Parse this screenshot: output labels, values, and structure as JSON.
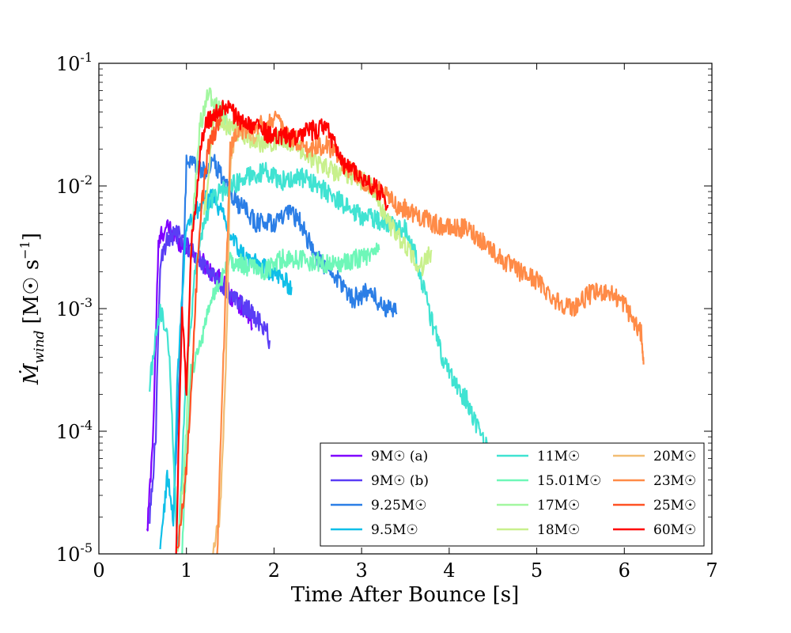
{
  "chart_data": {
    "type": "line",
    "title": "",
    "xlabel": "Time After Bounce [s]",
    "ylabel": "Ṁ_wind [M☉ s⁻¹]",
    "ylabel_parts": {
      "main": "Ṁ",
      "sub": "wind",
      "unit": "[M☉ s",
      "exp": "−1",
      "close": "]"
    },
    "xlim": [
      0,
      7
    ],
    "ylim": [
      1e-05,
      0.1
    ],
    "yscale": "log",
    "x_ticks": [
      "0",
      "1",
      "2",
      "3",
      "4",
      "5",
      "6",
      "7"
    ],
    "y_ticks": [
      {
        "base": "10",
        "exp": "-5"
      },
      {
        "base": "10",
        "exp": "-4"
      },
      {
        "base": "10",
        "exp": "-3"
      },
      {
        "base": "10",
        "exp": "-2"
      },
      {
        "base": "10",
        "exp": "-1"
      }
    ],
    "legend_placement": "lower-right",
    "series": [
      {
        "name": "9M☉ (a)",
        "color": "#8000ff",
        "x": [
          0.55,
          0.62,
          0.68,
          0.72,
          0.8,
          0.9,
          1.0,
          1.1,
          1.2,
          1.3,
          1.4,
          1.5,
          1.6,
          1.7,
          1.75
        ],
        "y": [
          1.4e-05,
          0.0001,
          0.0032,
          0.0042,
          0.0045,
          0.0036,
          0.0032,
          0.0027,
          0.0023,
          0.002,
          0.0017,
          0.0013,
          0.0011,
          0.0009,
          0.0007
        ]
      },
      {
        "name": "9M☉ (b)",
        "color": "#5a3df5",
        "x": [
          0.58,
          0.65,
          0.7,
          0.8,
          0.9,
          1.0,
          1.1,
          1.2,
          1.3,
          1.4,
          1.5,
          1.6,
          1.7,
          1.8,
          1.9,
          1.95
        ],
        "y": [
          2e-05,
          9e-05,
          0.0025,
          0.0038,
          0.004,
          0.0033,
          0.0027,
          0.0023,
          0.0019,
          0.0016,
          0.0013,
          0.0011,
          0.001,
          0.0008,
          0.0007,
          0.00055
        ]
      },
      {
        "name": "9.25M☉",
        "color": "#2b7ee6",
        "x": [
          0.85,
          0.95,
          1.0,
          1.1,
          1.2,
          1.3,
          1.4,
          1.5,
          1.6,
          1.7,
          1.8,
          1.9,
          2.0,
          2.1,
          2.2,
          2.3,
          2.4,
          2.5,
          2.6,
          2.7,
          2.8,
          2.9,
          3.0,
          3.1,
          3.2,
          3.3,
          3.4
        ],
        "y": [
          2e-05,
          0.001,
          0.015,
          0.015,
          0.013,
          0.016,
          0.012,
          0.009,
          0.007,
          0.006,
          0.005,
          0.005,
          0.005,
          0.0055,
          0.006,
          0.005,
          0.0035,
          0.0025,
          0.0022,
          0.0018,
          0.0015,
          0.0012,
          0.0013,
          0.0014,
          0.0011,
          0.001,
          0.0009
        ]
      },
      {
        "name": "9.5M☉",
        "color": "#0fbfe8",
        "x": [
          0.7,
          0.78,
          0.85,
          0.9,
          1.0,
          1.1,
          1.2,
          1.3,
          1.4,
          1.5,
          1.6,
          1.7,
          1.8,
          1.9,
          2.0,
          2.1,
          2.2
        ],
        "y": [
          1e-05,
          4.5e-05,
          2e-05,
          0.0003,
          0.005,
          0.006,
          0.0075,
          0.008,
          0.006,
          0.004,
          0.003,
          0.0025,
          0.0023,
          0.0021,
          0.002,
          0.0017,
          0.0015
        ]
      },
      {
        "name": "11M☉",
        "color": "#40e3d2",
        "x": [
          0.58,
          0.7,
          0.8,
          0.9,
          1.0,
          1.1,
          1.2,
          1.3,
          1.5,
          1.7,
          1.9,
          2.1,
          2.3,
          2.5,
          2.7,
          2.9,
          3.1,
          3.3,
          3.5,
          3.6,
          3.7,
          3.8,
          3.9,
          4.0,
          4.1,
          4.2,
          4.3,
          4.4,
          4.5
        ],
        "y": [
          0.00025,
          0.001,
          0.0005,
          1e-05,
          0.0003,
          0.002,
          0.005,
          0.008,
          0.01,
          0.012,
          0.013,
          0.011,
          0.012,
          0.01,
          0.008,
          0.006,
          0.0055,
          0.005,
          0.0045,
          0.003,
          0.0015,
          0.0008,
          0.00045,
          0.0003,
          0.00022,
          0.00018,
          0.00012,
          8e-05,
          6e-05
        ]
      },
      {
        "name": "15.01M☉",
        "color": "#6ef7b8",
        "x": [
          0.95,
          1.05,
          1.15,
          1.3,
          1.5,
          1.7,
          1.9,
          2.1,
          2.3,
          2.5,
          2.7,
          2.9,
          3.0,
          3.1,
          3.2
        ],
        "y": [
          1e-05,
          0.0003,
          0.0005,
          0.0012,
          0.0025,
          0.0022,
          0.002,
          0.0026,
          0.0025,
          0.0024,
          0.0023,
          0.0025,
          0.0026,
          0.0028,
          0.003
        ]
      },
      {
        "name": "17M☉",
        "color": "#a3f7a0",
        "x": [
          0.9,
          1.0,
          1.05,
          1.15,
          1.25,
          1.3,
          1.4,
          1.5
        ],
        "y": [
          1e-05,
          0.0001,
          0.003,
          0.03,
          0.055,
          0.05,
          0.04,
          0.03
        ]
      },
      {
        "name": "18M☉",
        "color": "#c8f08c",
        "x": [
          1.2,
          1.3,
          1.5,
          1.7,
          1.9,
          2.1,
          2.3,
          2.5,
          2.7,
          2.9,
          3.1,
          3.3,
          3.5,
          3.6,
          3.7,
          3.8
        ],
        "y": [
          0.005,
          0.035,
          0.03,
          0.025,
          0.022,
          0.025,
          0.02,
          0.015,
          0.013,
          0.012,
          0.01,
          0.005,
          0.0032,
          0.0025,
          0.0022,
          0.003
        ]
      },
      {
        "name": "20M☉",
        "color": "#f2bd73",
        "x": [
          1.3,
          1.38,
          1.45,
          1.5,
          1.55,
          1.6,
          1.7,
          1.8
        ],
        "y": [
          1e-05,
          2e-05,
          0.0003,
          0.015,
          0.025,
          0.03,
          0.03,
          0.025
        ]
      },
      {
        "name": "23M☉",
        "color": "#ff8b47",
        "x": [
          1.35,
          1.45,
          1.5,
          1.6,
          1.8,
          2.0,
          2.2,
          2.4,
          2.6,
          2.8,
          3.0,
          3.2,
          3.4,
          3.6,
          3.8,
          4.0,
          4.2,
          4.4,
          4.6,
          4.8,
          5.0,
          5.2,
          5.4,
          5.6,
          5.8,
          6.0,
          6.1,
          6.2,
          6.22
        ],
        "y": [
          1e-05,
          0.0015,
          0.02,
          0.028,
          0.03,
          0.035,
          0.025,
          0.02,
          0.022,
          0.015,
          0.011,
          0.009,
          0.007,
          0.006,
          0.005,
          0.0045,
          0.0045,
          0.0035,
          0.0025,
          0.002,
          0.0017,
          0.0012,
          0.001,
          0.0013,
          0.0014,
          0.0011,
          0.0008,
          0.0006,
          0.00035
        ]
      },
      {
        "name": "25M☉",
        "color": "#ff5224",
        "x": [
          0.9,
          1.0,
          1.05,
          1.1,
          1.15,
          1.2,
          1.25,
          1.3,
          1.35,
          1.4
        ],
        "y": [
          1e-05,
          5e-05,
          0.0002,
          0.001,
          0.005,
          0.01,
          0.02,
          0.025,
          0.03,
          0.035
        ]
      },
      {
        "name": "60M☉",
        "color": "#ff0000",
        "x": [
          0.88,
          0.95,
          1.0,
          1.05,
          1.12,
          1.18,
          1.25,
          1.35,
          1.45,
          1.6,
          1.8,
          2.0,
          2.2,
          2.4,
          2.6,
          2.8,
          3.0,
          3.2,
          3.3
        ],
        "y": [
          1e-05,
          0.001,
          0.0002,
          0.003,
          0.01,
          0.025,
          0.035,
          0.04,
          0.045,
          0.035,
          0.03,
          0.025,
          0.025,
          0.028,
          0.03,
          0.015,
          0.012,
          0.009,
          0.007
        ]
      }
    ]
  }
}
